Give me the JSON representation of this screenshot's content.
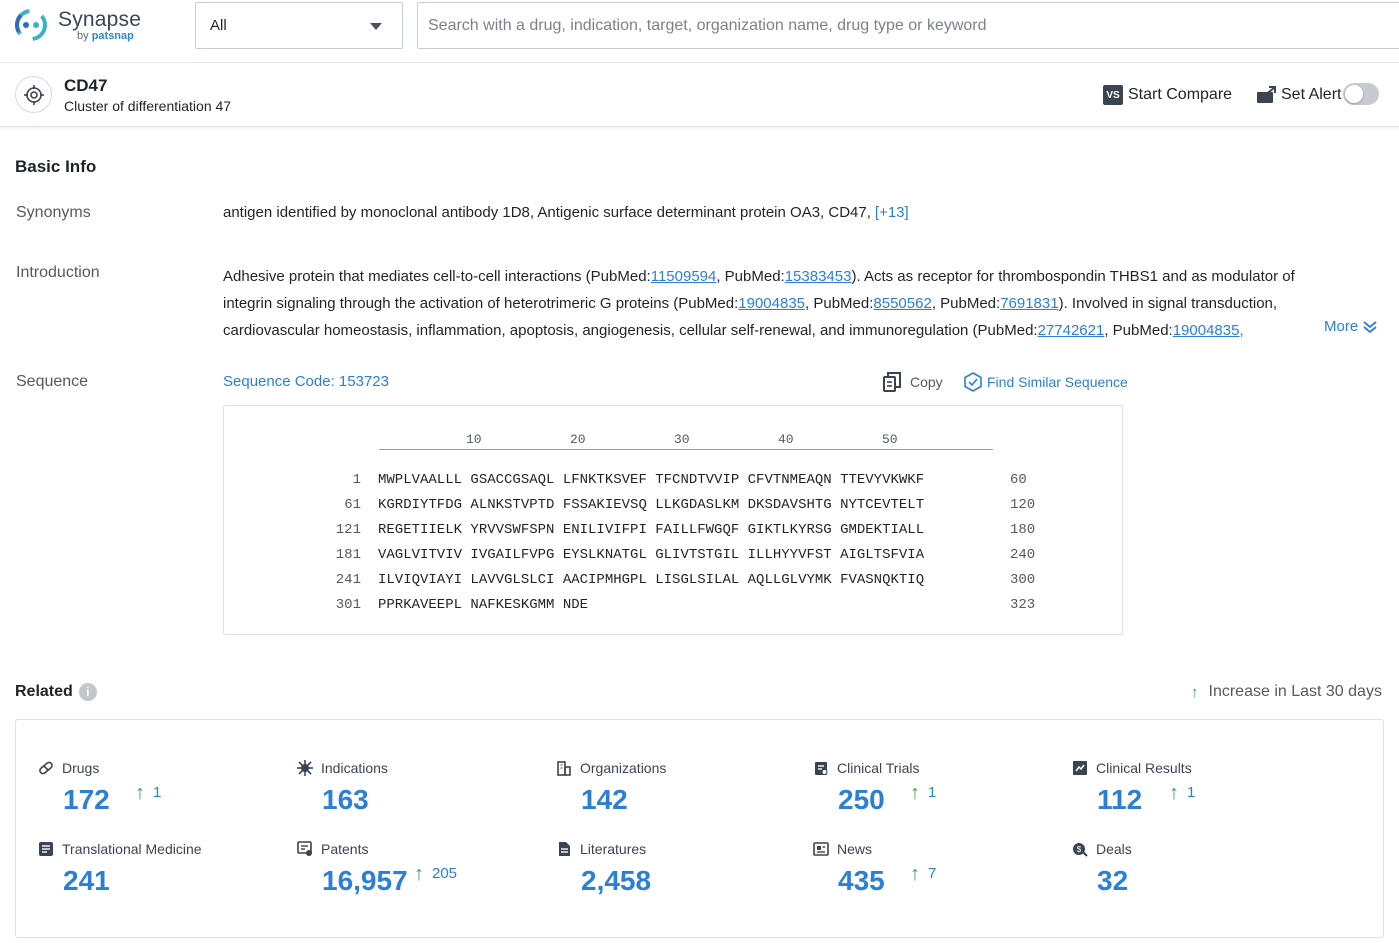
{
  "brand": {
    "name": "Synapse",
    "by": "by",
    "company": "patsnap"
  },
  "search": {
    "scope_selected": "All",
    "placeholder": "Search with a drug, indication, target, organization name, drug type or keyword"
  },
  "target": {
    "name": "CD47",
    "full_name": "Cluster of differentiation 47",
    "actions": {
      "compare": "Start Compare",
      "compare_icon": "VS",
      "alert": "Set Alert",
      "alert_enabled": false
    }
  },
  "basic_info": {
    "title": "Basic Info",
    "synonyms_label": "Synonyms",
    "synonyms": "antigen identified by monoclonal antibody 1D8,  Antigenic surface determinant protein OA3,  CD47,",
    "synonyms_more": "[+13]",
    "introduction_label": "Introduction",
    "introduction_segments": [
      {
        "text": "Adhesive protein that mediates cell-to-cell interactions (PubMed:"
      },
      {
        "text": "11509594",
        "link": true
      },
      {
        "text": ", PubMed:"
      },
      {
        "text": "15383453",
        "link": true
      },
      {
        "text": "). Acts as receptor for thrombospondin THBS1 and as modulator of integrin signaling through the activation of heterotrimeric G proteins (PubMed:"
      },
      {
        "text": "19004835",
        "link": true
      },
      {
        "text": ", PubMed:"
      },
      {
        "text": "8550562",
        "link": true
      },
      {
        "text": ", PubMed:"
      },
      {
        "text": "7691831",
        "link": true
      },
      {
        "text": "). Involved in signal transduction, cardiovascular homeostasis, inflammation, apoptosis, angiogenesis, cellular self-renewal, and immunoregulation (PubMed:"
      },
      {
        "text": "27742621",
        "link": true
      },
      {
        "text": ", PubMed:"
      },
      {
        "text": "19004835,",
        "link": true
      }
    ],
    "more_label": "More",
    "sequence_label": "Sequence",
    "sequence_code": "Sequence Code: 153723",
    "copy_label": "Copy",
    "find_similar_label": "Find Similar Sequence"
  },
  "sequence": {
    "ruler": [
      "10",
      "20",
      "30",
      "40",
      "50"
    ],
    "lines": [
      {
        "start": "1",
        "residues": "MWPLVAALLL GSACCGSAQL LFNKTKSVEF TFCNDTVVIP CFVTNMEAQN TTEVYVKWKF",
        "end": "60"
      },
      {
        "start": "61",
        "residues": "KGRDIYTFDG ALNKSTVPTD FSSAKIEVSQ LLKGDASLKM DKSDAVSHTG NYTCEVTELT",
        "end": "120"
      },
      {
        "start": "121",
        "residues": "REGETIIELK YRVVSWFSPN ENILIVIFPI FAILLFWGQF GIKTLKYRSG GMDEKTIALL",
        "end": "180"
      },
      {
        "start": "181",
        "residues": "VAGLVITVIV IVGAILFVPG EYSLKNATGL GLIVTSTGIL ILLHYYVFST AIGLTSFVIA",
        "end": "240"
      },
      {
        "start": "241",
        "residues": "ILVIQVIAYI LAVVGLSLCI AACIPMHGPL LISGLSILAL AQLLGLVYMK FVASNQKTIQ",
        "end": "300"
      },
      {
        "start": "301",
        "residues": "PPRKAVEEPL NAFKESKGMM NDE",
        "end": "323"
      }
    ]
  },
  "related": {
    "title": "Related",
    "legend": "Increase in Last 30 days",
    "accent_color": "#2b7fd4",
    "increase_color": "#3aa648",
    "stats": [
      {
        "label": "Drugs",
        "value": "172",
        "increase": "1",
        "icon": "pill-icon"
      },
      {
        "label": "Indications",
        "value": "163",
        "increase": "",
        "icon": "virus-icon"
      },
      {
        "label": "Organizations",
        "value": "142",
        "increase": "",
        "icon": "building-icon"
      },
      {
        "label": "Clinical Trials",
        "value": "250",
        "increase": "1",
        "icon": "clipboard-icon"
      },
      {
        "label": "Clinical Results",
        "value": "112",
        "increase": "1",
        "icon": "chart-icon"
      },
      {
        "label": "Translational Medicine",
        "value": "241",
        "increase": "",
        "icon": "document-icon"
      },
      {
        "label": "Patents",
        "value": "16,957",
        "increase": "205",
        "icon": "patent-icon"
      },
      {
        "label": "Literatures",
        "value": "2,458",
        "increase": "",
        "icon": "book-icon"
      },
      {
        "label": "News",
        "value": "435",
        "increase": "7",
        "icon": "newspaper-icon"
      },
      {
        "label": "Deals",
        "value": "32",
        "increase": "",
        "icon": "deal-icon"
      }
    ]
  }
}
